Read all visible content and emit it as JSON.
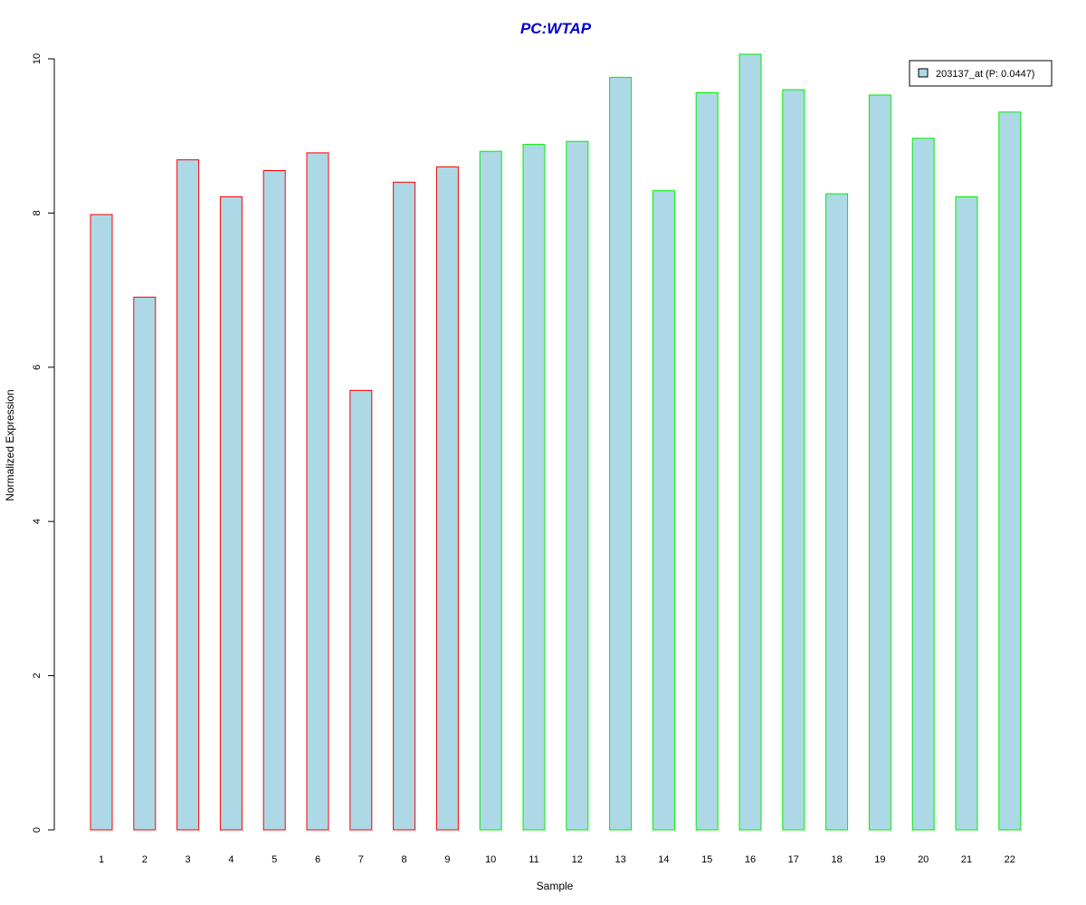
{
  "chart_data": {
    "type": "bar",
    "title": "PC:WTAP",
    "xlabel": "Sample",
    "ylabel": "Normalized Expression",
    "ylim": [
      0,
      10
    ],
    "yticks": [
      0,
      2,
      4,
      6,
      8,
      10
    ],
    "categories": [
      "1",
      "2",
      "3",
      "4",
      "5",
      "6",
      "7",
      "8",
      "9",
      "10",
      "11",
      "12",
      "13",
      "14",
      "15",
      "16",
      "17",
      "18",
      "19",
      "20",
      "21",
      "22"
    ],
    "series": [
      {
        "name": "203137_at (P: 0.0447)",
        "values": [
          7.98,
          6.91,
          8.69,
          8.21,
          8.55,
          8.78,
          5.7,
          8.4,
          8.6,
          8.8,
          8.89,
          8.93,
          9.76,
          8.29,
          9.56,
          10.06,
          9.6,
          8.25,
          9.53,
          8.97,
          8.21,
          9.31
        ]
      }
    ],
    "group_border_colors": [
      "red",
      "red",
      "red",
      "red",
      "red",
      "red",
      "red",
      "red",
      "red",
      "green",
      "green",
      "green",
      "green",
      "green",
      "green",
      "green",
      "green",
      "green",
      "green",
      "green",
      "green",
      "green"
    ],
    "colors": {
      "fill": "#add8e6",
      "group1_border": "#ff0000",
      "group2_border": "#00ee00",
      "title": "#0000cc"
    },
    "grid": false,
    "legend_position": "top-right"
  }
}
